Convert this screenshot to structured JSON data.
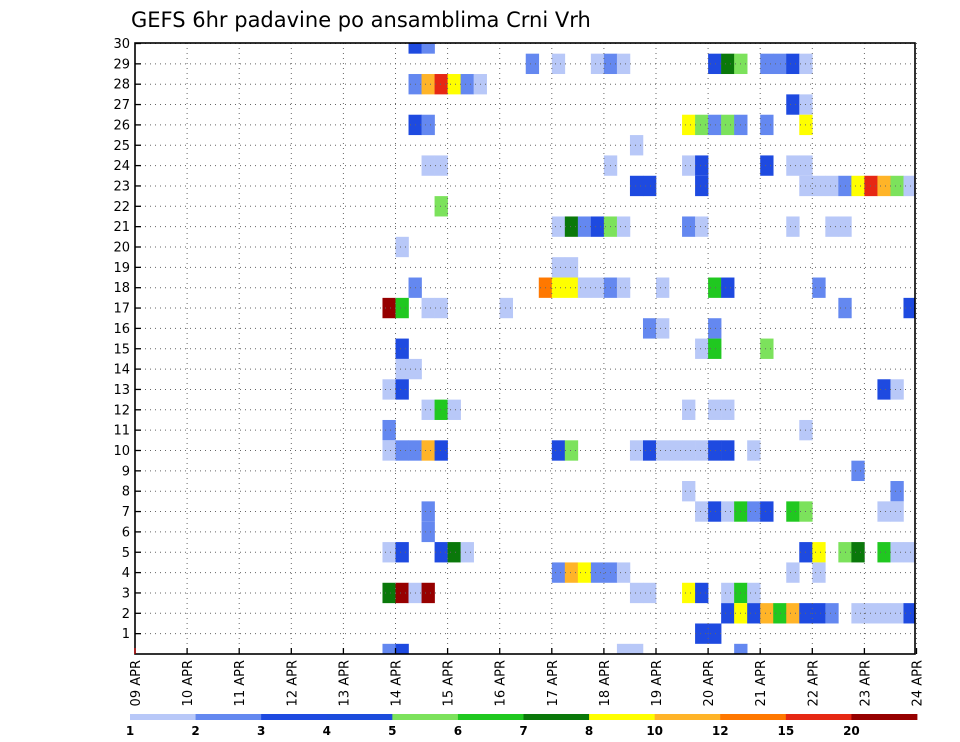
{
  "chart_data": {
    "type": "heatmap",
    "title": "GEFS 6hr padavine po ansamblima Crni Vrh",
    "xlabel": "",
    "ylabel": "",
    "x_ticks": [
      "09 APR",
      "10 APR",
      "11 APR",
      "12 APR",
      "13 APR",
      "14 APR",
      "15 APR",
      "16 APR",
      "17 APR",
      "18 APR",
      "19 APR",
      "20 APR",
      "21 APR",
      "22 APR",
      "23 APR",
      "24 APR"
    ],
    "y_ticks": [
      "1",
      "2",
      "3",
      "4",
      "5",
      "6",
      "7",
      "8",
      "9",
      "10",
      "11",
      "12",
      "13",
      "14",
      "15",
      "16",
      "17",
      "18",
      "19",
      "20",
      "21",
      "22",
      "23",
      "24",
      "25",
      "26",
      "27",
      "28",
      "29",
      "30"
    ],
    "x_range_days": [
      0,
      15
    ],
    "y_range": [
      0,
      30
    ],
    "grid": true,
    "legend_position": "bottom",
    "legend": {
      "thresholds": [
        "1",
        "2",
        "3",
        "4",
        "5",
        "6",
        "7",
        "8",
        "10",
        "12",
        "15",
        "20"
      ],
      "colors": [
        "#b8c8f8",
        "#6488f0",
        "#1e4ae0",
        "#1c4cdc",
        "#7ce25c",
        "#20c820",
        "#0a780a",
        "#ffff00",
        "#ffb428",
        "#ff7800",
        "#e62814",
        "#960000"
      ]
    },
    "cells_note": "each cell: [member, day offset from 09 APR of 6h interval start, color class 0-11]",
    "cells": [
      [
        30,
        5.25,
        2
      ],
      [
        30,
        5.5,
        1
      ],
      [
        29,
        7.5,
        1
      ],
      [
        29,
        8.0,
        0
      ],
      [
        29,
        8.75,
        0
      ],
      [
        29,
        9.0,
        1
      ],
      [
        29,
        9.25,
        0
      ],
      [
        29,
        11.0,
        2
      ],
      [
        29,
        11.25,
        6
      ],
      [
        29,
        11.5,
        4
      ],
      [
        29,
        12.0,
        1
      ],
      [
        29,
        12.25,
        1
      ],
      [
        29,
        12.5,
        2
      ],
      [
        29,
        12.75,
        0
      ],
      [
        28,
        5.25,
        1
      ],
      [
        28,
        5.5,
        8
      ],
      [
        28,
        5.75,
        10
      ],
      [
        28,
        6.0,
        7
      ],
      [
        28,
        6.25,
        1
      ],
      [
        28,
        6.5,
        0
      ],
      [
        27,
        12.5,
        2
      ],
      [
        27,
        12.75,
        0
      ],
      [
        26,
        5.25,
        2
      ],
      [
        26,
        5.5,
        1
      ],
      [
        26,
        10.5,
        7
      ],
      [
        26,
        10.75,
        4
      ],
      [
        26,
        11.0,
        1
      ],
      [
        26,
        11.25,
        4
      ],
      [
        26,
        11.5,
        1
      ],
      [
        26,
        12.0,
        1
      ],
      [
        26,
        12.75,
        7
      ],
      [
        25,
        9.5,
        0
      ],
      [
        24,
        5.5,
        0
      ],
      [
        24,
        5.75,
        0
      ],
      [
        24,
        9.0,
        0
      ],
      [
        24,
        10.5,
        0
      ],
      [
        24,
        10.75,
        2
      ],
      [
        24,
        12.0,
        2
      ],
      [
        24,
        12.5,
        0
      ],
      [
        24,
        12.75,
        0
      ],
      [
        23,
        9.5,
        2
      ],
      [
        23,
        9.75,
        2
      ],
      [
        23,
        10.75,
        2
      ],
      [
        23,
        12.75,
        0
      ],
      [
        23,
        13.0,
        0
      ],
      [
        23,
        13.25,
        0
      ],
      [
        23,
        13.5,
        1
      ],
      [
        23,
        13.75,
        7
      ],
      [
        23,
        14.0,
        10
      ],
      [
        23,
        14.25,
        8
      ],
      [
        23,
        14.5,
        4
      ],
      [
        23,
        14.75,
        0
      ],
      [
        22,
        5.75,
        4
      ],
      [
        21,
        8.0,
        0
      ],
      [
        21,
        8.25,
        6
      ],
      [
        21,
        8.5,
        1
      ],
      [
        21,
        8.75,
        2
      ],
      [
        21,
        9.0,
        4
      ],
      [
        21,
        9.25,
        0
      ],
      [
        21,
        10.5,
        1
      ],
      [
        21,
        10.75,
        0
      ],
      [
        21,
        12.5,
        0
      ],
      [
        21,
        13.25,
        0
      ],
      [
        21,
        13.5,
        0
      ],
      [
        20,
        5.0,
        0
      ],
      [
        19,
        8.0,
        0
      ],
      [
        19,
        8.25,
        0
      ],
      [
        18,
        5.25,
        1
      ],
      [
        18,
        7.75,
        9
      ],
      [
        18,
        8.0,
        7
      ],
      [
        18,
        8.25,
        7
      ],
      [
        18,
        8.5,
        0
      ],
      [
        18,
        8.75,
        0
      ],
      [
        18,
        9.0,
        1
      ],
      [
        18,
        9.25,
        0
      ],
      [
        18,
        10.0,
        0
      ],
      [
        18,
        11.0,
        5
      ],
      [
        18,
        11.25,
        2
      ],
      [
        18,
        13.0,
        1
      ],
      [
        17,
        4.75,
        11
      ],
      [
        17,
        5.0,
        5
      ],
      [
        17,
        5.5,
        0
      ],
      [
        17,
        5.75,
        0
      ],
      [
        17,
        7.0,
        0
      ],
      [
        17,
        13.5,
        1
      ],
      [
        17,
        14.75,
        2
      ],
      [
        16,
        9.75,
        1
      ],
      [
        16,
        10.0,
        0
      ],
      [
        16,
        11.0,
        1
      ],
      [
        15,
        5.0,
        2
      ],
      [
        15,
        10.75,
        0
      ],
      [
        15,
        11.0,
        5
      ],
      [
        15,
        12.0,
        4
      ],
      [
        14,
        5.0,
        0
      ],
      [
        14,
        5.25,
        0
      ],
      [
        13,
        4.75,
        0
      ],
      [
        13,
        5.0,
        2
      ],
      [
        13,
        14.25,
        2
      ],
      [
        13,
        14.5,
        0
      ],
      [
        12,
        5.5,
        0
      ],
      [
        12,
        5.75,
        5
      ],
      [
        12,
        6.0,
        0
      ],
      [
        12,
        10.5,
        0
      ],
      [
        12,
        11.0,
        0
      ],
      [
        12,
        11.25,
        0
      ],
      [
        11,
        4.75,
        1
      ],
      [
        11,
        12.75,
        0
      ],
      [
        10,
        4.75,
        0
      ],
      [
        10,
        5.0,
        1
      ],
      [
        10,
        5.25,
        1
      ],
      [
        10,
        5.5,
        8
      ],
      [
        10,
        5.75,
        2
      ],
      [
        10,
        8.0,
        2
      ],
      [
        10,
        8.25,
        4
      ],
      [
        10,
        9.5,
        0
      ],
      [
        10,
        9.75,
        2
      ],
      [
        10,
        10.0,
        0
      ],
      [
        10,
        10.25,
        0
      ],
      [
        10,
        10.5,
        0
      ],
      [
        10,
        10.75,
        0
      ],
      [
        10,
        11.0,
        2
      ],
      [
        10,
        11.25,
        2
      ],
      [
        10,
        11.75,
        0
      ],
      [
        9,
        13.75,
        1
      ],
      [
        8,
        10.5,
        0
      ],
      [
        8,
        14.5,
        1
      ],
      [
        7,
        5.5,
        1
      ],
      [
        7,
        10.75,
        0
      ],
      [
        7,
        11.0,
        2
      ],
      [
        7,
        11.25,
        0
      ],
      [
        7,
        11.5,
        5
      ],
      [
        7,
        11.75,
        1
      ],
      [
        7,
        12.0,
        2
      ],
      [
        7,
        12.5,
        5
      ],
      [
        7,
        12.75,
        4
      ],
      [
        7,
        14.25,
        0
      ],
      [
        7,
        14.5,
        0
      ],
      [
        6,
        5.5,
        1
      ],
      [
        5,
        4.75,
        0
      ],
      [
        5,
        5.0,
        2
      ],
      [
        5,
        5.75,
        2
      ],
      [
        5,
        6.0,
        6
      ],
      [
        5,
        6.25,
        0
      ],
      [
        5,
        12.75,
        2
      ],
      [
        5,
        13.0,
        7
      ],
      [
        5,
        13.5,
        4
      ],
      [
        5,
        13.75,
        6
      ],
      [
        5,
        14.25,
        5
      ],
      [
        5,
        14.5,
        0
      ],
      [
        5,
        14.75,
        0
      ],
      [
        4,
        8.0,
        1
      ],
      [
        4,
        8.25,
        8
      ],
      [
        4,
        8.5,
        7
      ],
      [
        4,
        8.75,
        1
      ],
      [
        4,
        9.0,
        1
      ],
      [
        4,
        9.25,
        0
      ],
      [
        4,
        12.5,
        0
      ],
      [
        4,
        13.0,
        0
      ],
      [
        3,
        4.75,
        6
      ],
      [
        3,
        5.0,
        11
      ],
      [
        3,
        5.25,
        0
      ],
      [
        3,
        5.5,
        11
      ],
      [
        3,
        9.5,
        0
      ],
      [
        3,
        9.75,
        0
      ],
      [
        3,
        10.5,
        7
      ],
      [
        3,
        10.75,
        2
      ],
      [
        3,
        11.25,
        0
      ],
      [
        3,
        11.5,
        5
      ],
      [
        3,
        11.75,
        0
      ],
      [
        2,
        11.25,
        2
      ],
      [
        2,
        11.5,
        7
      ],
      [
        2,
        11.75,
        2
      ],
      [
        2,
        12.0,
        8
      ],
      [
        2,
        12.25,
        5
      ],
      [
        2,
        12.5,
        8
      ],
      [
        2,
        12.75,
        2
      ],
      [
        2,
        13.0,
        2
      ],
      [
        2,
        13.25,
        1
      ],
      [
        2,
        13.75,
        0
      ],
      [
        2,
        14.0,
        0
      ],
      [
        2,
        14.25,
        0
      ],
      [
        2,
        14.5,
        0
      ],
      [
        2,
        14.75,
        2
      ],
      [
        1,
        10.75,
        2
      ],
      [
        1,
        11.0,
        2
      ],
      [
        0,
        4.75,
        1
      ],
      [
        0,
        5.0,
        2
      ],
      [
        0,
        9.25,
        0
      ],
      [
        0,
        9.5,
        0
      ],
      [
        0,
        11.5,
        1
      ]
    ]
  }
}
